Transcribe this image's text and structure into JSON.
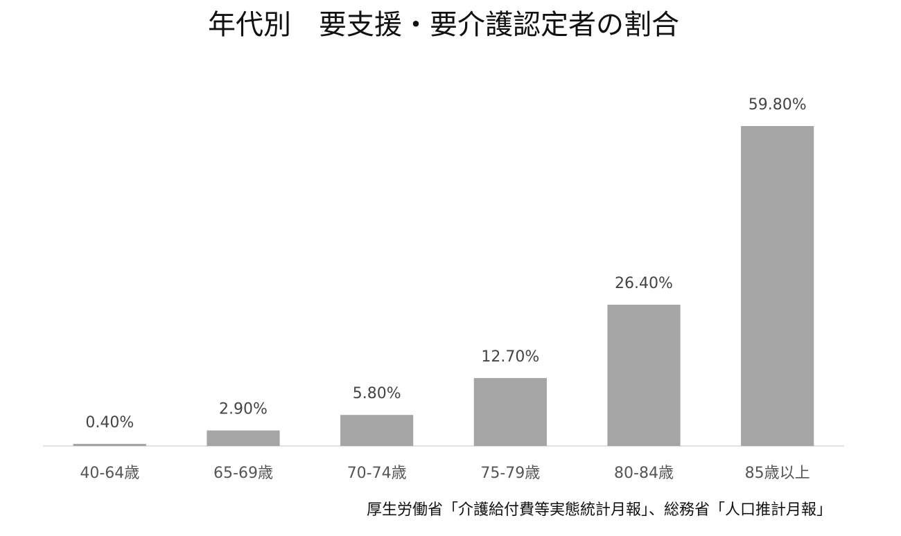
{
  "chart_data": {
    "type": "bar",
    "title": "年代別　要支援・要介護認定者の割合",
    "categories": [
      "40-64歳",
      "65-69歳",
      "70-74歳",
      "75-79歳",
      "80-84歳",
      "85歳以上"
    ],
    "values": [
      0.4,
      2.9,
      5.8,
      12.7,
      26.4,
      59.8
    ],
    "value_labels": [
      "0.40%",
      "2.90%",
      "5.80%",
      "12.70%",
      "26.40%",
      "59.80%"
    ],
    "color": "#a5a5a5",
    "source": "厚生労働省「介護給付費等実態統計月報」、総務省「人口推計月報」"
  }
}
